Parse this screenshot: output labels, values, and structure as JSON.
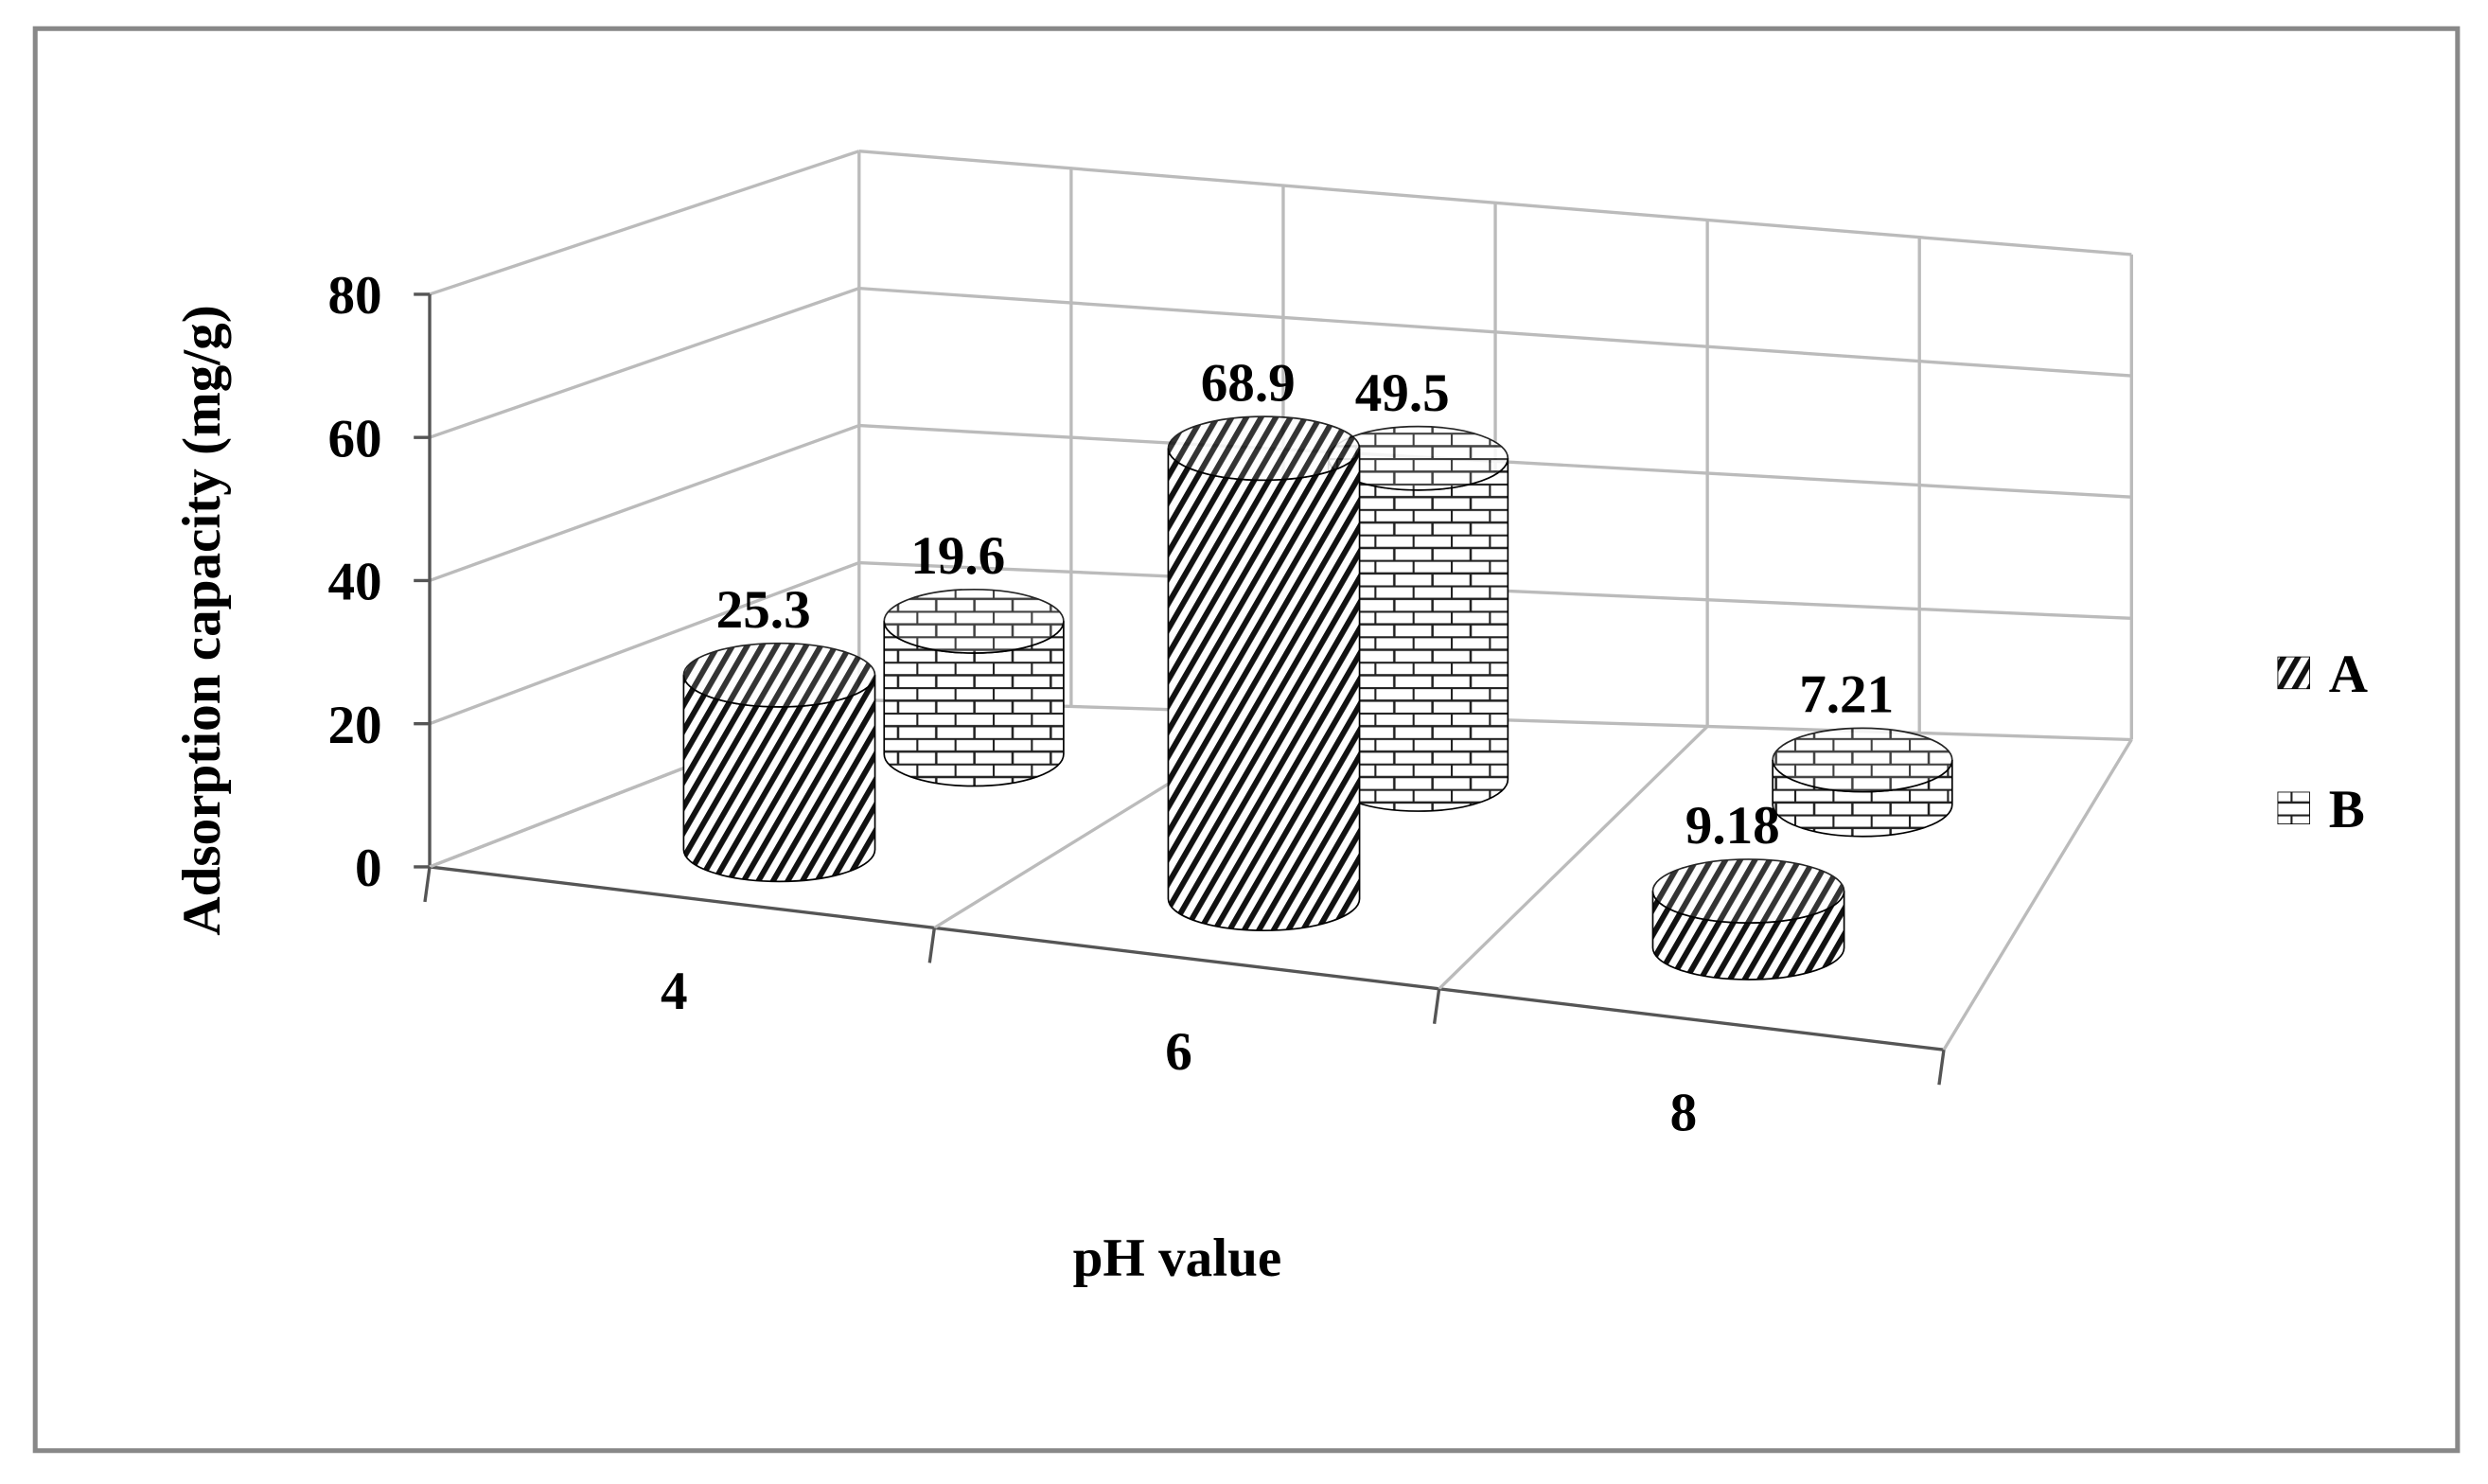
{
  "chart_data": {
    "type": "cylinder3d",
    "x_label": "pH value",
    "y_label": "Adsorption capacity (mg/g)",
    "categories": [
      "4",
      "6",
      "8"
    ],
    "series": [
      {
        "name": "A",
        "pattern": "diagonal",
        "color": "#000000",
        "values": [
          25.3,
          68.9,
          9.18
        ]
      },
      {
        "name": "B",
        "pattern": "brick",
        "color": "#000000",
        "values": [
          19.6,
          49.5,
          7.21
        ]
      }
    ],
    "ylim": [
      0,
      80
    ],
    "yticks": [
      0,
      20,
      40,
      60,
      80
    ],
    "grid": true,
    "legend": "right"
  }
}
